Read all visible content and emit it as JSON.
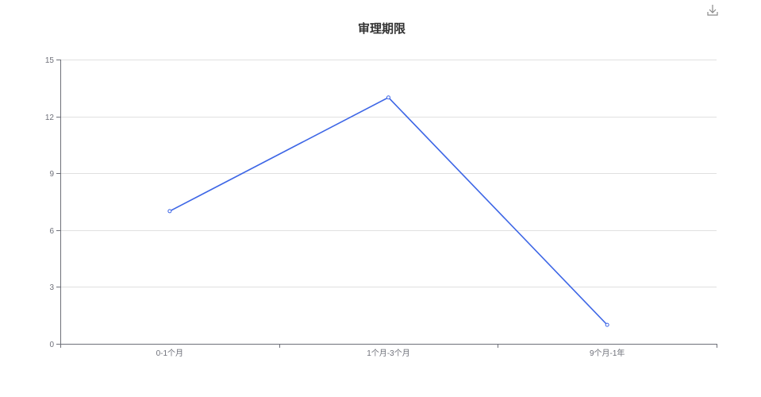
{
  "chart_data": {
    "type": "line",
    "title": "审理期限",
    "xlabel": "",
    "ylabel": "",
    "categories": [
      "0-1个月",
      "1个月-3个月",
      "9个月-1年"
    ],
    "series": [
      {
        "values": [
          7,
          13,
          1
        ]
      }
    ],
    "yticks": [
      0,
      3,
      6,
      9,
      12,
      15
    ],
    "ylim": [
      0,
      15
    ],
    "grid": true,
    "line_color": "#3d66e6",
    "axis_color": "#6e7079",
    "grid_color": "#e0e0e0"
  },
  "toolbar": {
    "download_icon": "download-icon"
  }
}
